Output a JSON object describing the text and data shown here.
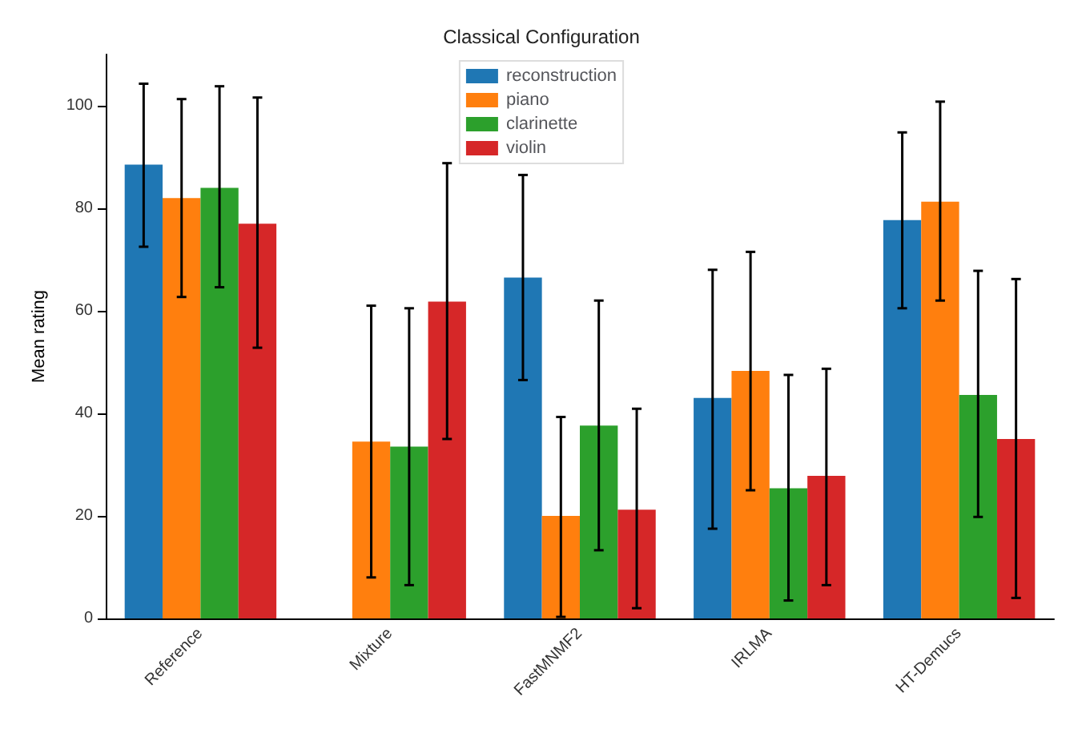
{
  "chart_data": {
    "type": "bar",
    "title": "Classical Configuration",
    "ylabel": "Mean rating",
    "categories": [
      "Reference",
      "Mixture",
      "FastMNMF2",
      "IRLMA",
      "HT-Demucs"
    ],
    "series": [
      {
        "name": "reconstruction",
        "color": "#1f77b4",
        "values": [
          88.5,
          null,
          66.5,
          43,
          77.7
        ],
        "errors": [
          [
            72.5,
            104.3
          ],
          null,
          [
            46.5,
            86.5
          ],
          [
            17.5,
            68
          ],
          [
            60.5,
            94.8
          ]
        ]
      },
      {
        "name": "piano",
        "color": "#ff7f0e",
        "values": [
          82,
          34.5,
          20,
          48.3,
          81.3
        ],
        "errors": [
          [
            62.7,
            101.3
          ],
          [
            8,
            61
          ],
          [
            0.3,
            39.3
          ],
          [
            25,
            71.5
          ],
          [
            62,
            100.8
          ]
        ]
      },
      {
        "name": "clarinette",
        "color": "#2ca02c",
        "values": [
          84,
          33.5,
          37.6,
          25.4,
          43.6
        ],
        "errors": [
          [
            64.6,
            103.8
          ],
          [
            6.5,
            60.5
          ],
          [
            13.3,
            62
          ],
          [
            3.5,
            47.5
          ],
          [
            19.8,
            67.8
          ]
        ]
      },
      {
        "name": "violin",
        "color": "#d62728",
        "values": [
          77,
          61.8,
          21.2,
          27.8,
          35
        ],
        "errors": [
          [
            52.8,
            101.6
          ],
          [
            35,
            88.8
          ],
          [
            2,
            40.9
          ],
          [
            6.5,
            48.7
          ],
          [
            4,
            66.2
          ]
        ]
      }
    ],
    "ylim": [
      0,
      110
    ],
    "yticks": [
      0,
      20,
      40,
      60,
      80,
      100
    ],
    "grid": false,
    "legend": "top"
  }
}
